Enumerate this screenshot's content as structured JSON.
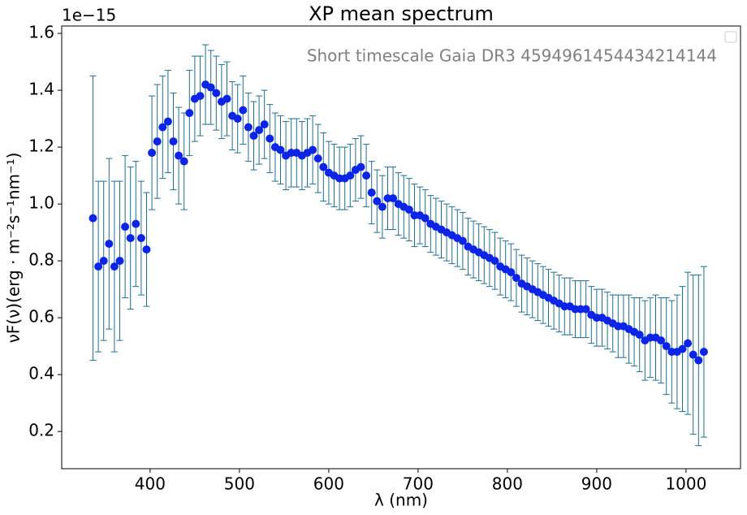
{
  "chart_data": {
    "type": "scatter",
    "title": "XP mean spectrum",
    "annotation": "Short timescale Gaia DR3 4594961454434214144",
    "y_offset_label": "1e−15",
    "xlabel": "λ (nm)",
    "ylabel": "νF(ν)(erg · m⁻²s⁻¹nm⁻¹)",
    "xlim": [
      301,
      1061
    ],
    "ylim": [
      0.069,
      1.626
    ],
    "xticks": [
      400,
      500,
      600,
      700,
      800,
      900,
      1000
    ],
    "yticks": [
      0.2,
      0.4,
      0.6,
      0.8,
      {
        "value": 1,
        "label": "1.0"
      },
      1.2,
      1.4,
      1.6
    ],
    "legend": "upper right",
    "x": [
      336,
      342,
      348,
      354,
      360,
      366,
      372,
      378,
      384,
      390,
      396,
      402,
      408,
      414,
      420,
      426,
      432,
      438,
      444,
      450,
      456,
      462,
      468,
      474,
      480,
      486,
      492,
      498,
      504,
      510,
      516,
      522,
      528,
      534,
      540,
      546,
      552,
      558,
      564,
      570,
      576,
      582,
      588,
      594,
      600,
      606,
      612,
      618,
      624,
      630,
      636,
      642,
      648,
      654,
      660,
      666,
      672,
      678,
      684,
      690,
      696,
      702,
      708,
      714,
      720,
      726,
      732,
      738,
      744,
      750,
      756,
      762,
      768,
      774,
      780,
      786,
      792,
      798,
      804,
      810,
      816,
      822,
      828,
      834,
      840,
      846,
      852,
      858,
      864,
      870,
      876,
      882,
      888,
      894,
      900,
      906,
      912,
      918,
      924,
      930,
      936,
      942,
      948,
      954,
      960,
      966,
      972,
      978,
      984,
      990,
      996,
      1002,
      1008,
      1014,
      1020
    ],
    "series": [
      {
        "color": "#0b24e6",
        "error_color": "#1f6e8c",
        "values": [
          0.95,
          0.78,
          0.8,
          0.86,
          0.78,
          0.8,
          0.92,
          0.88,
          0.93,
          0.88,
          0.84,
          1.18,
          1.22,
          1.27,
          1.29,
          1.22,
          1.17,
          1.15,
          1.32,
          1.37,
          1.38,
          1.42,
          1.41,
          1.39,
          1.36,
          1.37,
          1.31,
          1.3,
          1.33,
          1.27,
          1.24,
          1.26,
          1.28,
          1.23,
          1.2,
          1.19,
          1.17,
          1.18,
          1.18,
          1.17,
          1.18,
          1.19,
          1.16,
          1.13,
          1.11,
          1.1,
          1.09,
          1.09,
          1.1,
          1.12,
          1.13,
          1.1,
          1.04,
          1.01,
          0.99,
          1.02,
          1.02,
          1.0,
          0.99,
          0.98,
          0.96,
          0.96,
          0.95,
          0.93,
          0.92,
          0.91,
          0.9,
          0.89,
          0.88,
          0.87,
          0.85,
          0.84,
          0.83,
          0.82,
          0.81,
          0.8,
          0.78,
          0.77,
          0.76,
          0.74,
          0.72,
          0.71,
          0.7,
          0.69,
          0.68,
          0.67,
          0.66,
          0.65,
          0.64,
          0.64,
          0.63,
          0.63,
          0.63,
          0.61,
          0.6,
          0.6,
          0.59,
          0.58,
          0.57,
          0.57,
          0.56,
          0.55,
          0.54,
          0.52,
          0.53,
          0.53,
          0.52,
          0.5,
          0.48,
          0.48,
          0.49,
          0.51,
          0.47,
          0.45,
          0.48
        ],
        "errors": [
          0.5,
          0.3,
          0.28,
          0.3,
          0.3,
          0.28,
          0.25,
          0.25,
          0.22,
          0.2,
          0.2,
          0.2,
          0.2,
          0.18,
          0.18,
          0.17,
          0.17,
          0.17,
          0.15,
          0.15,
          0.14,
          0.14,
          0.13,
          0.13,
          0.13,
          0.13,
          0.12,
          0.12,
          0.12,
          0.12,
          0.12,
          0.12,
          0.12,
          0.12,
          0.12,
          0.12,
          0.12,
          0.12,
          0.12,
          0.12,
          0.12,
          0.12,
          0.12,
          0.12,
          0.11,
          0.11,
          0.11,
          0.11,
          0.11,
          0.11,
          0.11,
          0.11,
          0.11,
          0.11,
          0.11,
          0.11,
          0.11,
          0.11,
          0.11,
          0.11,
          0.11,
          0.1,
          0.1,
          0.1,
          0.1,
          0.1,
          0.1,
          0.1,
          0.1,
          0.1,
          0.1,
          0.1,
          0.1,
          0.1,
          0.1,
          0.1,
          0.1,
          0.1,
          0.1,
          0.1,
          0.1,
          0.1,
          0.1,
          0.1,
          0.1,
          0.1,
          0.1,
          0.1,
          0.1,
          0.1,
          0.1,
          0.1,
          0.1,
          0.1,
          0.1,
          0.1,
          0.1,
          0.1,
          0.11,
          0.11,
          0.12,
          0.12,
          0.13,
          0.14,
          0.14,
          0.15,
          0.15,
          0.17,
          0.18,
          0.2,
          0.22,
          0.25,
          0.28,
          0.3,
          0.3
        ]
      }
    ]
  }
}
